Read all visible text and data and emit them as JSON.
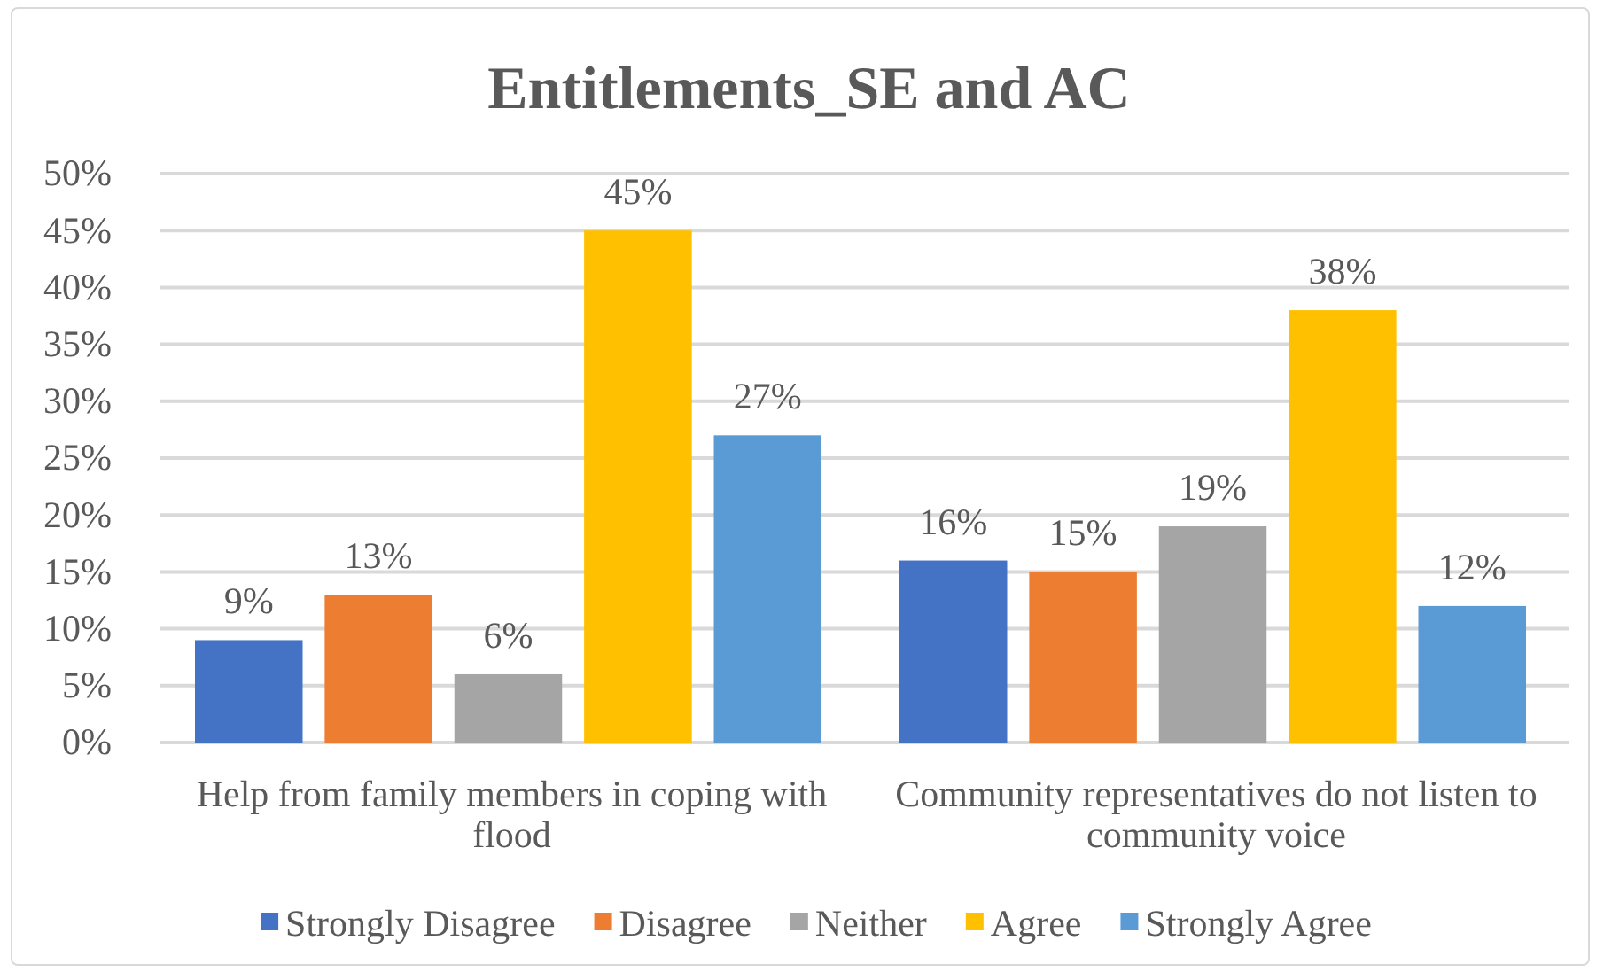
{
  "chart_data": {
    "type": "bar",
    "title": "Entitlements_SE and AC",
    "categories": [
      "Help from family members in coping with flood",
      "Community representatives do not listen to community voice"
    ],
    "series": [
      {
        "name": "Strongly Disagree",
        "color": "#4472c4",
        "values": [
          9,
          16
        ],
        "value_labels": [
          "9%",
          "16%"
        ]
      },
      {
        "name": "Disagree",
        "color": "#ed7d31",
        "values": [
          13,
          15
        ],
        "value_labels": [
          "13%",
          "15%"
        ]
      },
      {
        "name": "Neither",
        "color": "#a5a5a5",
        "values": [
          6,
          19
        ],
        "value_labels": [
          "6%",
          "19%"
        ]
      },
      {
        "name": "Agree",
        "color": "#ffc000",
        "values": [
          45,
          38
        ],
        "value_labels": [
          "45%",
          "38%"
        ]
      },
      {
        "name": "Strongly Agree",
        "color": "#5b9bd5",
        "values": [
          27,
          12
        ],
        "value_labels": [
          "27%",
          "12%"
        ]
      }
    ],
    "ylim": [
      0,
      50
    ],
    "yticks": [
      {
        "value": 0,
        "label": "0%"
      },
      {
        "value": 5,
        "label": "5%"
      },
      {
        "value": 10,
        "label": "10%"
      },
      {
        "value": 15,
        "label": "15%"
      },
      {
        "value": 20,
        "label": "20%"
      },
      {
        "value": 25,
        "label": "25%"
      },
      {
        "value": 30,
        "label": "30%"
      },
      {
        "value": 35,
        "label": "35%"
      },
      {
        "value": 40,
        "label": "40%"
      },
      {
        "value": 45,
        "label": "45%"
      },
      {
        "value": 50,
        "label": "50%"
      }
    ],
    "grid": "y",
    "legend": "bottom"
  }
}
